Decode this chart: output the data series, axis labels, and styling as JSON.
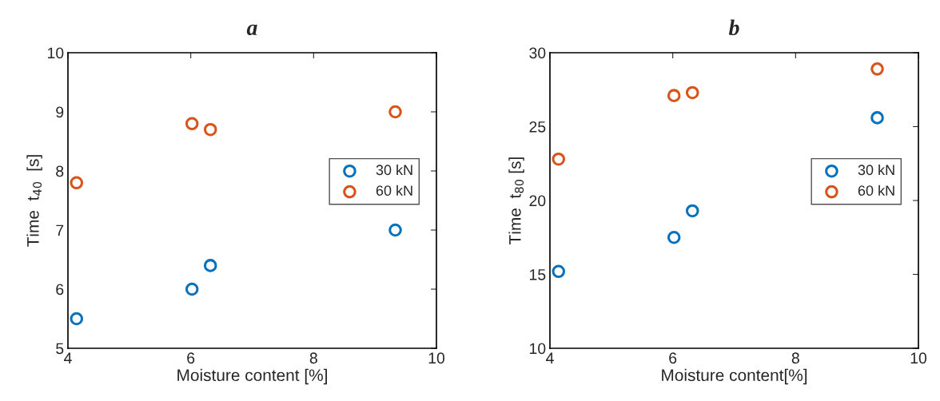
{
  "chart_data": [
    {
      "type": "scatter",
      "title": "a",
      "xlabel": "Moisture content [%]",
      "ylabel": "Time  t$_{40}$  [s]",
      "xlim": [
        4,
        10
      ],
      "xticks": [
        4,
        6,
        8,
        10
      ],
      "ylim": [
        5,
        10
      ],
      "yticks": [
        5,
        6,
        7,
        8,
        9,
        10
      ],
      "grid": false,
      "legend": "right",
      "marker": "circle",
      "series": [
        {
          "name": "30 kN",
          "color": "#0072bd",
          "x": [
            4.14,
            6.02,
            6.32,
            9.33
          ],
          "values": [
            5.5,
            6.0,
            6.4,
            7.0
          ]
        },
        {
          "name": "60 kN",
          "color": "#d95319",
          "x": [
            4.14,
            6.02,
            6.32,
            9.33
          ],
          "values": [
            7.8,
            8.8,
            8.7,
            9.0
          ]
        }
      ]
    },
    {
      "type": "scatter",
      "title": "b",
      "xlabel": "Moisture content[%]",
      "ylabel": "Time  t$_{80}$ [s]",
      "xlim": [
        4,
        10
      ],
      "xticks": [
        4,
        6,
        8,
        10
      ],
      "ylim": [
        10,
        30
      ],
      "yticks": [
        10,
        15,
        20,
        25,
        30
      ],
      "grid": false,
      "legend": "right",
      "marker": "circle",
      "series": [
        {
          "name": "30 kN",
          "color": "#0072bd",
          "x": [
            4.14,
            6.02,
            6.32,
            9.33
          ],
          "values": [
            15.2,
            17.5,
            19.3,
            25.6
          ]
        },
        {
          "name": "60 kN",
          "color": "#d95319",
          "x": [
            4.14,
            6.02,
            6.32,
            9.33
          ],
          "values": [
            22.8,
            27.1,
            27.3,
            28.9
          ]
        }
      ]
    }
  ]
}
